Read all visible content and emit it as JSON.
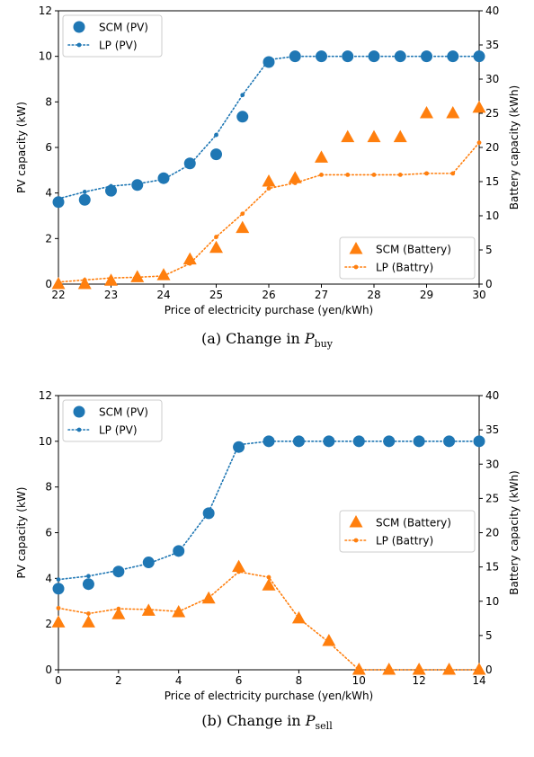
{
  "colors": {
    "pv": "#1f77b4",
    "battery": "#ff7f0e",
    "axis": "#000000",
    "legend_border": "#cccccc"
  },
  "chart_data": [
    {
      "type": "scatter",
      "caption": {
        "prefix": "(a) Change in ",
        "symbol": "P",
        "subscript": "buy"
      },
      "xlabel": "Price of electricity purchase (yen/kWh)",
      "ylabel": "PV capacity (kW)",
      "ylabel_right": "Battery capacity (kWh)",
      "xlim": [
        22,
        30
      ],
      "ylim": [
        0,
        12
      ],
      "ylim_right": [
        0,
        40
      ],
      "xticks": [
        "22",
        "23",
        "24",
        "25",
        "26",
        "27",
        "28",
        "29",
        "30"
      ],
      "yticks": [
        "0",
        "2",
        "4",
        "6",
        "8",
        "10",
        "12"
      ],
      "yticks_right": [
        "0",
        "5",
        "10",
        "15",
        "20",
        "25",
        "30",
        "35",
        "40"
      ],
      "grid": false,
      "legend_left": {
        "placement": "upper-left",
        "entries": [
          "SCM (PV)",
          "LP (PV)"
        ]
      },
      "legend_right": {
        "placement": "lower-right",
        "entries": [
          "SCM (Battery)",
          "LP (Battry)"
        ]
      },
      "series": [
        {
          "name": "SCM (PV)",
          "axis": "left",
          "style": "circle",
          "x": [
            22,
            22.5,
            23,
            23.5,
            24,
            24.5,
            25,
            25.5,
            26,
            26.5,
            27,
            27.5,
            28,
            28.5,
            29,
            29.5,
            30
          ],
          "y": [
            3.6,
            3.7,
            4.1,
            4.35,
            4.65,
            5.3,
            5.7,
            7.35,
            9.75,
            10,
            10,
            10,
            10,
            10,
            10,
            10,
            10
          ]
        },
        {
          "name": "LP (PV)",
          "axis": "left",
          "style": "dotted-line",
          "x": [
            22,
            22.5,
            23,
            23.5,
            24,
            24.5,
            25,
            25.5,
            26,
            26.5,
            27,
            27.5,
            28,
            28.5,
            29,
            29.5,
            30
          ],
          "y": [
            3.75,
            4.05,
            4.3,
            4.4,
            4.6,
            5.25,
            6.55,
            8.3,
            9.85,
            10,
            10,
            10,
            10,
            10,
            10,
            10,
            10
          ]
        },
        {
          "name": "SCM (Battery)",
          "axis": "right",
          "style": "triangle",
          "x": [
            22,
            22.5,
            23,
            23.5,
            24,
            24.5,
            25,
            25.5,
            26,
            26.5,
            27,
            27.5,
            28,
            28.5,
            29,
            29.5,
            30
          ],
          "y": [
            0,
            0,
            0.5,
            1,
            1.3,
            3.6,
            5.3,
            8.2,
            15,
            15.5,
            18.5,
            21.5,
            21.5,
            21.5,
            25,
            25,
            25.8
          ]
        },
        {
          "name": "LP (Battry)",
          "axis": "right",
          "style": "dotted-line",
          "x": [
            22,
            22.5,
            23,
            23.5,
            24,
            24.5,
            25,
            25.5,
            26,
            26.5,
            27,
            27.5,
            28,
            28.5,
            29,
            29.5,
            30
          ],
          "y": [
            0.3,
            0.6,
            0.9,
            1,
            1.2,
            3,
            6.9,
            10.3,
            14,
            14.8,
            16,
            16,
            16,
            16,
            16.2,
            16.2,
            20.7
          ]
        }
      ]
    },
    {
      "type": "scatter",
      "caption": {
        "prefix": "(b) Change in ",
        "symbol": "P",
        "subscript": "sell"
      },
      "xlabel": "Price of electricity purchase (yen/kWh)",
      "ylabel": "PV capacity (kW)",
      "ylabel_right": "Battery capacity (kWh)",
      "xlim": [
        0,
        14
      ],
      "ylim": [
        0,
        12
      ],
      "ylim_right": [
        0,
        40
      ],
      "xticks": [
        "0",
        "2",
        "4",
        "6",
        "8",
        "10",
        "12",
        "14"
      ],
      "yticks": [
        "0",
        "2",
        "4",
        "6",
        "8",
        "10",
        "12"
      ],
      "yticks_right": [
        "0",
        "5",
        "10",
        "15",
        "20",
        "25",
        "30",
        "35",
        "40"
      ],
      "grid": false,
      "legend_left": {
        "placement": "upper-left",
        "entries": [
          "SCM (PV)",
          "LP (PV)"
        ]
      },
      "legend_right": {
        "placement": "center-right",
        "entries": [
          "SCM (Battery)",
          "LP (Battry)"
        ]
      },
      "series": [
        {
          "name": "SCM (PV)",
          "axis": "left",
          "style": "circle",
          "x": [
            0,
            1,
            2,
            3,
            4,
            5,
            6,
            7,
            8,
            9,
            10,
            11,
            12,
            13,
            14
          ],
          "y": [
            3.55,
            3.75,
            4.3,
            4.7,
            5.2,
            6.85,
            9.75,
            10,
            10,
            10,
            10,
            10,
            10,
            10,
            10
          ]
        },
        {
          "name": "LP (PV)",
          "axis": "left",
          "style": "dotted-line",
          "x": [
            0,
            1,
            2,
            3,
            4,
            5,
            6,
            7,
            8,
            9,
            10,
            11,
            12,
            13,
            14
          ],
          "y": [
            3.95,
            4.1,
            4.35,
            4.65,
            5.15,
            6.9,
            9.85,
            10,
            10,
            10,
            10,
            10,
            10,
            10,
            10
          ]
        },
        {
          "name": "SCM (Battery)",
          "axis": "right",
          "style": "triangle",
          "x": [
            0,
            1,
            2,
            3,
            4,
            5,
            6,
            7,
            8,
            9,
            10,
            11,
            12,
            13,
            14
          ],
          "y": [
            6.9,
            6.9,
            8.1,
            8.6,
            8.4,
            10.4,
            15,
            12.3,
            7.5,
            4.2,
            0,
            0,
            0,
            0,
            0
          ]
        },
        {
          "name": "LP (Battry)",
          "axis": "right",
          "style": "dotted-line",
          "x": [
            0,
            1,
            2,
            3,
            4,
            5,
            6,
            7,
            8,
            9,
            10,
            11,
            12,
            13,
            14
          ],
          "y": [
            9,
            8.2,
            8.9,
            8.8,
            8.5,
            10.5,
            14.3,
            13.5,
            7.5,
            4,
            0,
            0,
            0,
            0,
            0
          ]
        }
      ]
    }
  ]
}
